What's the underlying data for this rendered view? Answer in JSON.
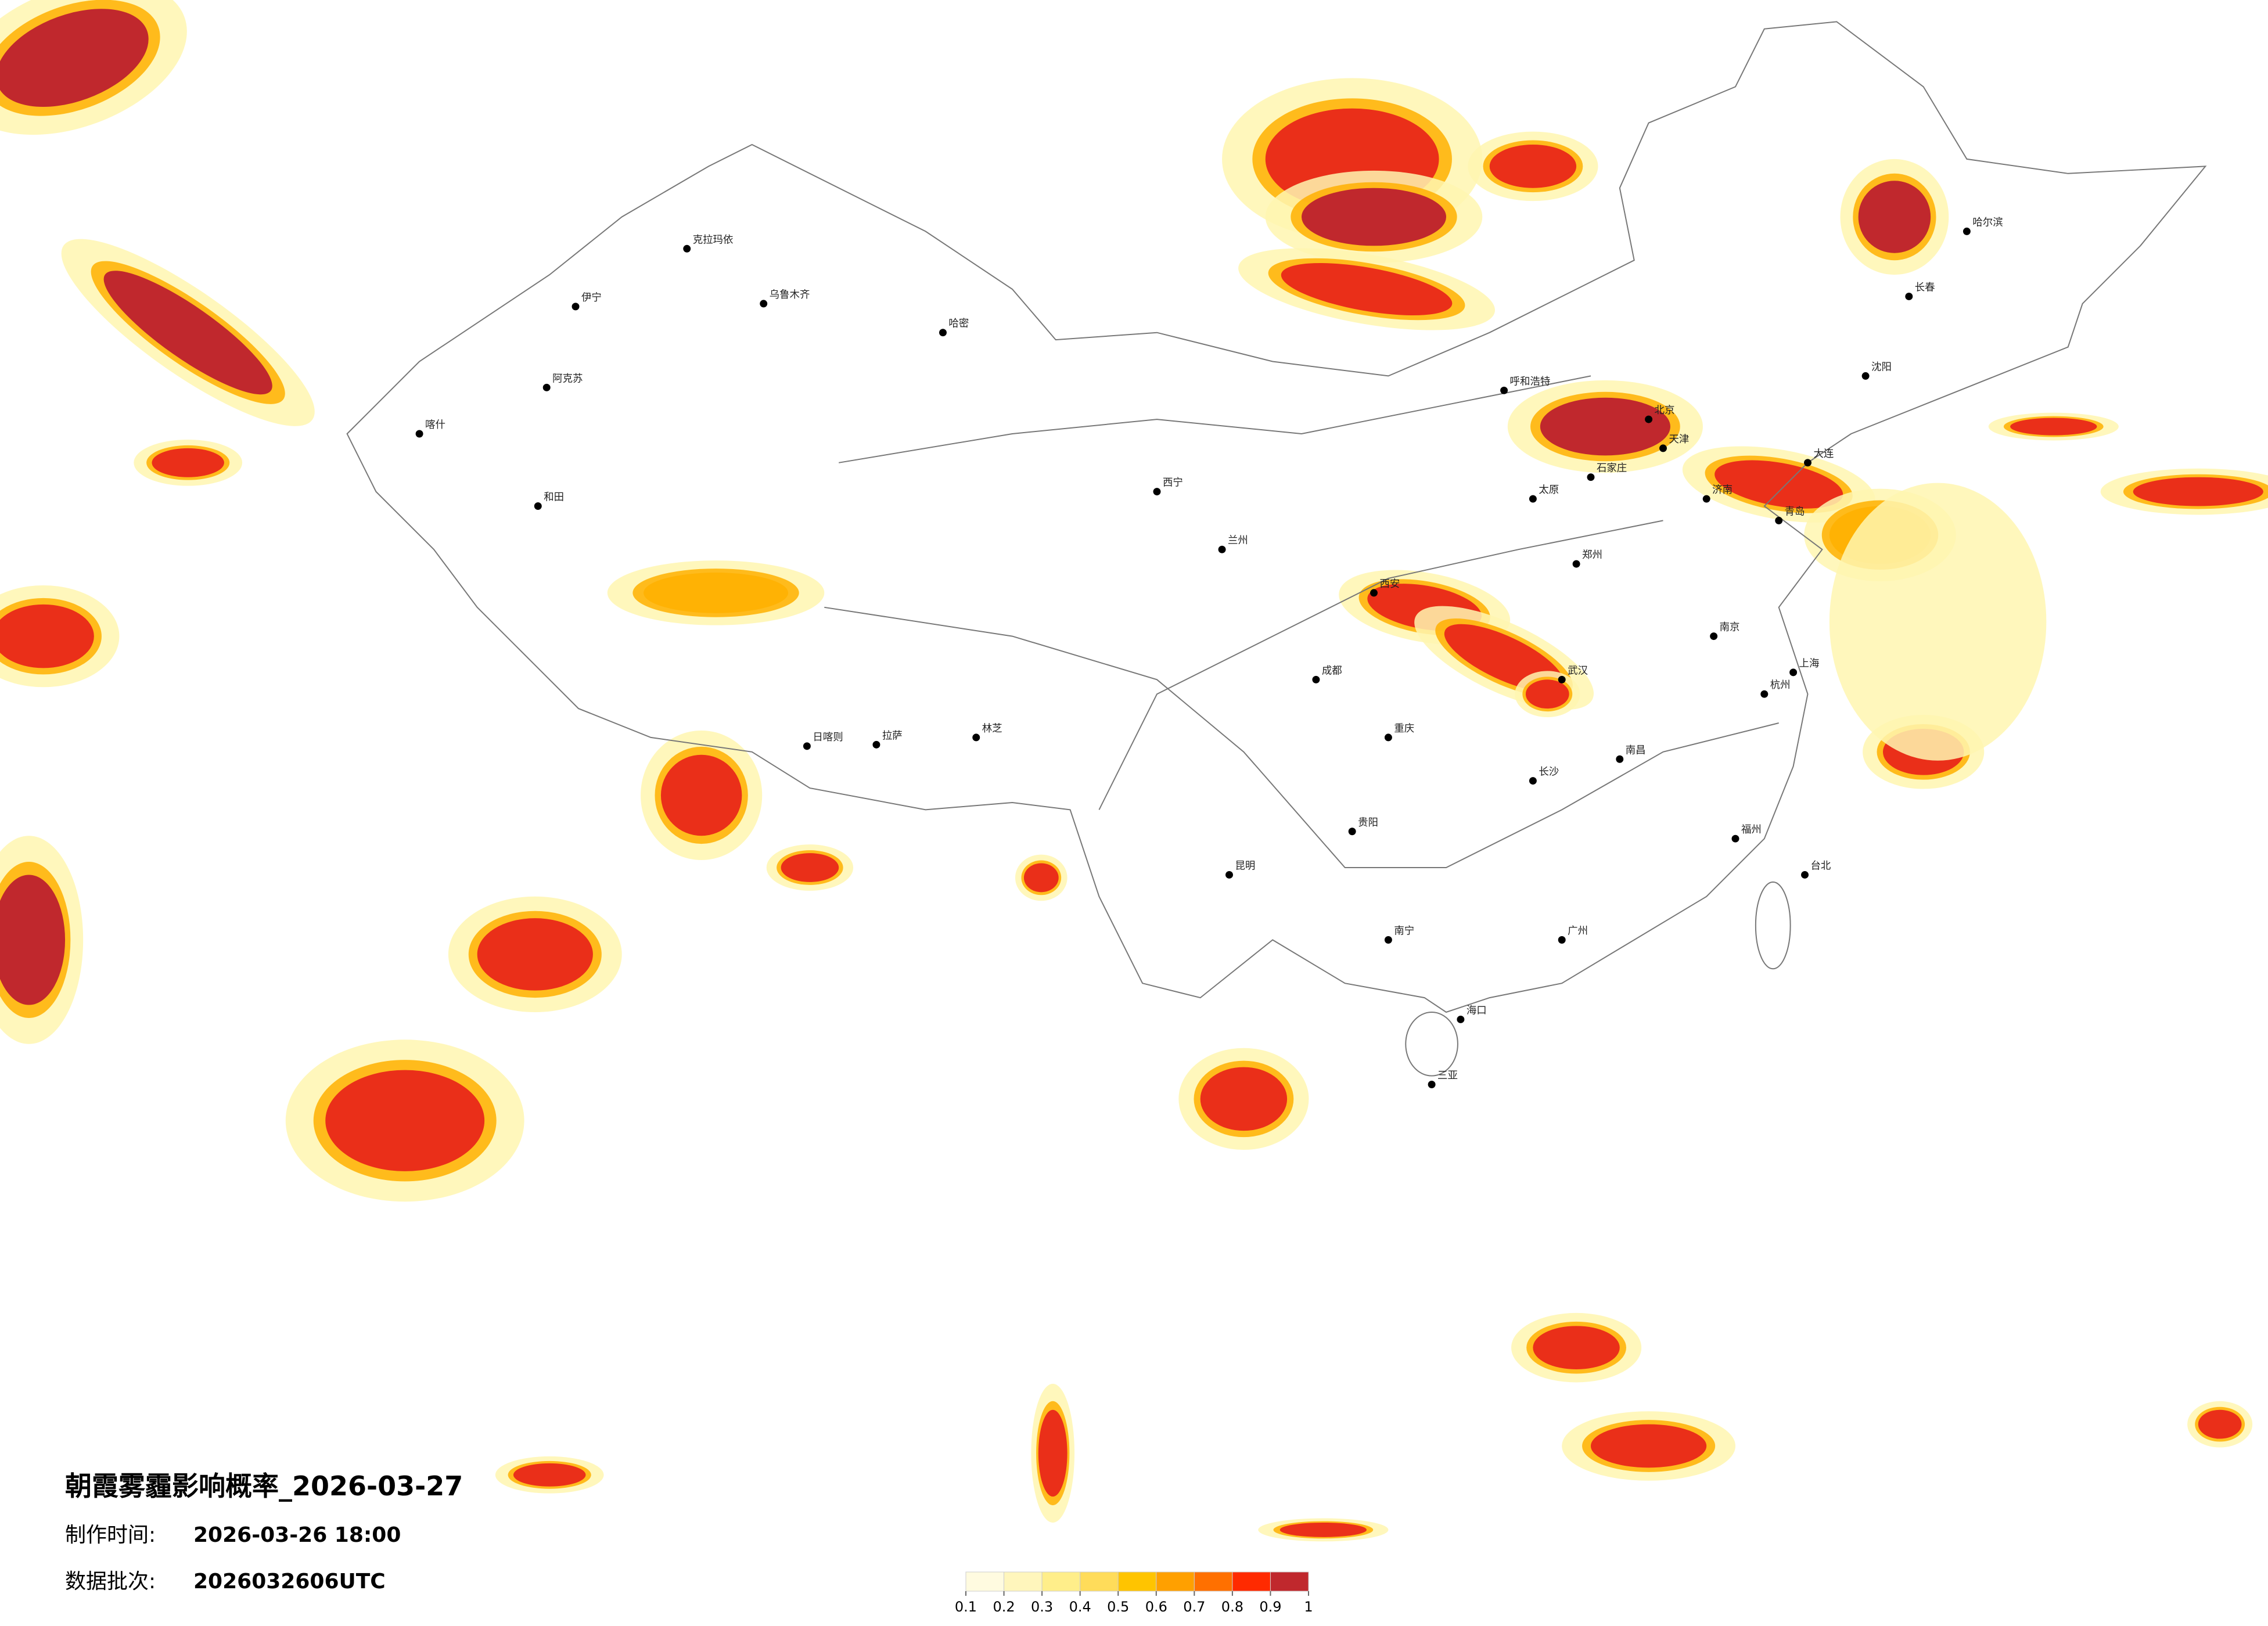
{
  "header": {
    "title": "朝霞雾霾影响概率_2026-03-27",
    "made_label": "制作时间:",
    "made_time": "2026-03-26 18:00",
    "batch_label": "数据批次:",
    "batch": "2026032606UTC"
  },
  "colorbar": {
    "ticks": [
      0.1,
      0.2,
      0.3,
      0.4,
      0.5,
      0.6,
      0.7,
      0.8,
      0.9,
      1
    ],
    "colors": [
      "#fffbe0",
      "#fff6bc",
      "#ffee8a",
      "#ffdc5a",
      "#ffc400",
      "#ffa000",
      "#ff7000",
      "#ff2a00",
      "#c0282d"
    ]
  },
  "cities": [
    "克拉玛依",
    "乌鲁木齐",
    "伊宁",
    "阿克苏",
    "喀什",
    "和田",
    "哈密",
    "拉萨",
    "日喀则",
    "林芝",
    "西宁",
    "兰州",
    "呼和浩特",
    "北京",
    "天津",
    "石家庄",
    "太原",
    "西安",
    "郑州",
    "济南",
    "青岛",
    "南京",
    "上海",
    "杭州",
    "武汉",
    "成都",
    "重庆",
    "长沙",
    "南昌",
    "福州",
    "广州",
    "南宁",
    "昆明",
    "贵阳",
    "海口",
    "三亚",
    "台北",
    "哈尔滨",
    "长春",
    "沈阳",
    "大连"
  ]
}
